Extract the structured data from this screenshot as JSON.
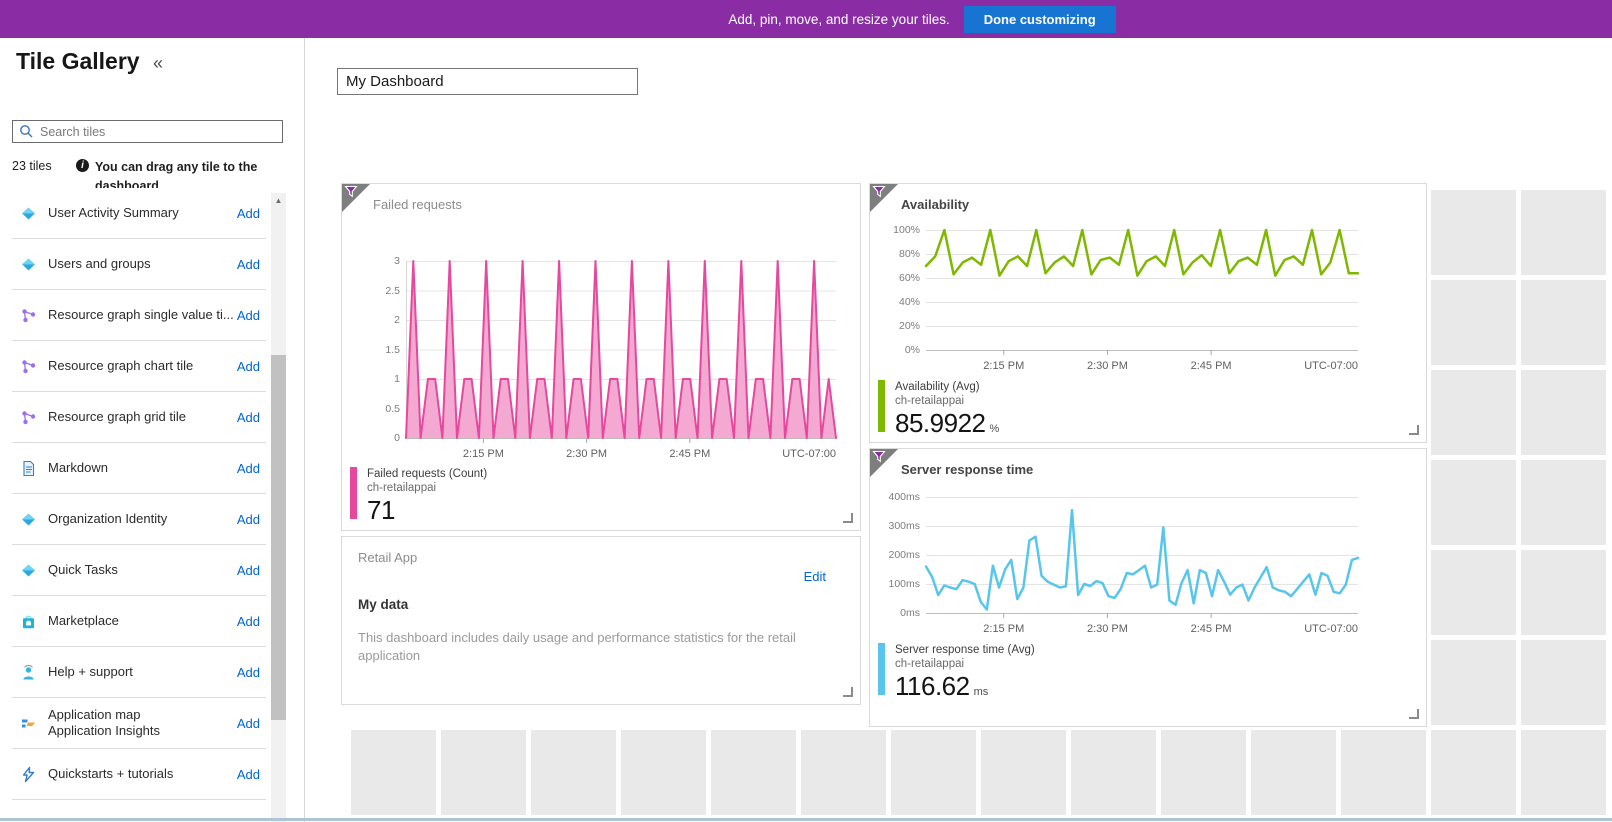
{
  "banner": {
    "message": "Add, pin, move, and resize your tiles.",
    "button": "Done customizing"
  },
  "sidebar": {
    "title": "Tile Gallery",
    "collapse_icon": "«",
    "search_placeholder": "Search tiles",
    "tile_count": "23 tiles",
    "info_glyph": "i",
    "hint": "You can drag any tile to the dashboard",
    "scroll_up_glyph": "▲",
    "add_label": "Add",
    "items": [
      {
        "label": "User Activity Summary",
        "icon": "diamond"
      },
      {
        "label": "Users and groups",
        "icon": "diamond"
      },
      {
        "label": "Resource graph single value ti...",
        "icon": "graph"
      },
      {
        "label": "Resource graph chart tile",
        "icon": "graph"
      },
      {
        "label": "Resource graph grid tile",
        "icon": "graph"
      },
      {
        "label": "Markdown",
        "icon": "document"
      },
      {
        "label": "Organization Identity",
        "icon": "diamond"
      },
      {
        "label": "Quick Tasks",
        "icon": "diamond"
      },
      {
        "label": "Marketplace",
        "icon": "bag"
      },
      {
        "label": "Help + support",
        "icon": "person"
      },
      {
        "label": "Application map",
        "label2": "Application Insights",
        "icon": "appmap"
      },
      {
        "label": "Quickstarts + tutorials",
        "icon": "bolt"
      }
    ]
  },
  "dashboard": {
    "name_value": "My Dashboard"
  },
  "tiles": {
    "markdown": {
      "title": "Retail App",
      "edit": "Edit",
      "heading": "My data",
      "body": "This dashboard includes daily usage and performance statistics for the retail application"
    }
  },
  "chart_data": [
    {
      "type": "area",
      "title": "Failed requests",
      "color": "#e5489d",
      "fill": "#f3a9d2",
      "stroke_width": 2,
      "left_axis": true,
      "ylim": [
        0,
        3
      ],
      "yticks": [
        {
          "v": 3,
          "label": "3"
        },
        {
          "v": 2.5,
          "label": "2.5"
        },
        {
          "v": 2,
          "label": "2"
        },
        {
          "v": 1.5,
          "label": "1.5"
        },
        {
          "v": 1,
          "label": "1"
        },
        {
          "v": 0.5,
          "label": "0.5"
        },
        {
          "v": 0,
          "label": "0"
        }
      ],
      "xticks": [
        {
          "f": 0.18,
          "label": "2:15 PM"
        },
        {
          "f": 0.42,
          "label": "2:30 PM"
        },
        {
          "f": 0.66,
          "label": "2:45 PM"
        },
        {
          "f": 1,
          "label": "UTC-07:00",
          "edge": true
        }
      ],
      "values": [
        0,
        3,
        0,
        1,
        1,
        0,
        3,
        0,
        1,
        1,
        0,
        3,
        0,
        1,
        1,
        0,
        3,
        0,
        1,
        1,
        0,
        3,
        0,
        1,
        1,
        0,
        3,
        0,
        1,
        1,
        0,
        3,
        0,
        1,
        1,
        0,
        3,
        0,
        1,
        1,
        0,
        3,
        0,
        1,
        1,
        0,
        3,
        0,
        1,
        1,
        0,
        3,
        0,
        1,
        1,
        0,
        3,
        0,
        1,
        0
      ],
      "legend": {
        "metric": "Failed requests (Count)",
        "resource": "ch-retailappai",
        "value": "71",
        "unit": ""
      }
    },
    {
      "type": "line",
      "title": "Availability",
      "color": "#7fb800",
      "stroke_width": 2.5,
      "ylim": [
        0,
        100
      ],
      "yticks": [
        {
          "v": 100,
          "label": "100%"
        },
        {
          "v": 80,
          "label": "80%"
        },
        {
          "v": 60,
          "label": "60%"
        },
        {
          "v": 40,
          "label": "40%"
        },
        {
          "v": 20,
          "label": "20%"
        },
        {
          "v": 0,
          "label": "0%"
        }
      ],
      "xticks": [
        {
          "f": 0.18,
          "label": "2:15 PM"
        },
        {
          "f": 0.42,
          "label": "2:30 PM"
        },
        {
          "f": 0.66,
          "label": "2:45 PM"
        },
        {
          "f": 1,
          "label": "UTC-07:00",
          "edge": true
        }
      ],
      "values": [
        70,
        78,
        100,
        63,
        73,
        77,
        71,
        100,
        62,
        74,
        78,
        70,
        100,
        64,
        73,
        78,
        70,
        100,
        63,
        75,
        77,
        71,
        100,
        62,
        74,
        78,
        70,
        100,
        63,
        73,
        79,
        70,
        100,
        64,
        74,
        77,
        71,
        100,
        62,
        75,
        78,
        71,
        100,
        63,
        73,
        100,
        64,
        64
      ],
      "legend": {
        "metric": "Availability (Avg)",
        "resource": "ch-retailappai",
        "value": "85.9922",
        "unit": "%"
      }
    },
    {
      "type": "line",
      "title": "Server response time",
      "color": "#58c5ec",
      "stroke_width": 2.5,
      "ylim": [
        0,
        400
      ],
      "yticks": [
        {
          "v": 400,
          "label": "400ms"
        },
        {
          "v": 300,
          "label": "300ms"
        },
        {
          "v": 200,
          "label": "200ms"
        },
        {
          "v": 100,
          "label": "100ms"
        },
        {
          "v": 0,
          "label": "0ms"
        }
      ],
      "xticks": [
        {
          "f": 0.18,
          "label": "2:15 PM"
        },
        {
          "f": 0.42,
          "label": "2:30 PM"
        },
        {
          "f": 0.66,
          "label": "2:45 PM"
        },
        {
          "f": 1,
          "label": "UTC-07:00",
          "edge": true
        }
      ],
      "values": [
        160,
        125,
        62,
        95,
        88,
        82,
        113,
        108,
        100,
        38,
        12,
        163,
        88,
        150,
        183,
        48,
        88,
        250,
        263,
        128,
        108,
        98,
        88,
        92,
        355,
        62,
        100,
        93,
        110,
        103,
        58,
        52,
        83,
        138,
        133,
        148,
        163,
        88,
        98,
        295,
        43,
        28,
        103,
        148,
        33,
        148,
        138,
        58,
        148,
        108,
        63,
        88,
        98,
        43,
        88,
        123,
        158,
        88,
        78,
        73,
        58,
        83,
        108,
        133,
        63,
        138,
        128,
        73,
        68,
        98,
        183,
        190
      ],
      "legend": {
        "metric": "Server response time (Avg)",
        "resource": "ch-retailappai",
        "value": "116.62",
        "unit": "ms"
      }
    }
  ]
}
